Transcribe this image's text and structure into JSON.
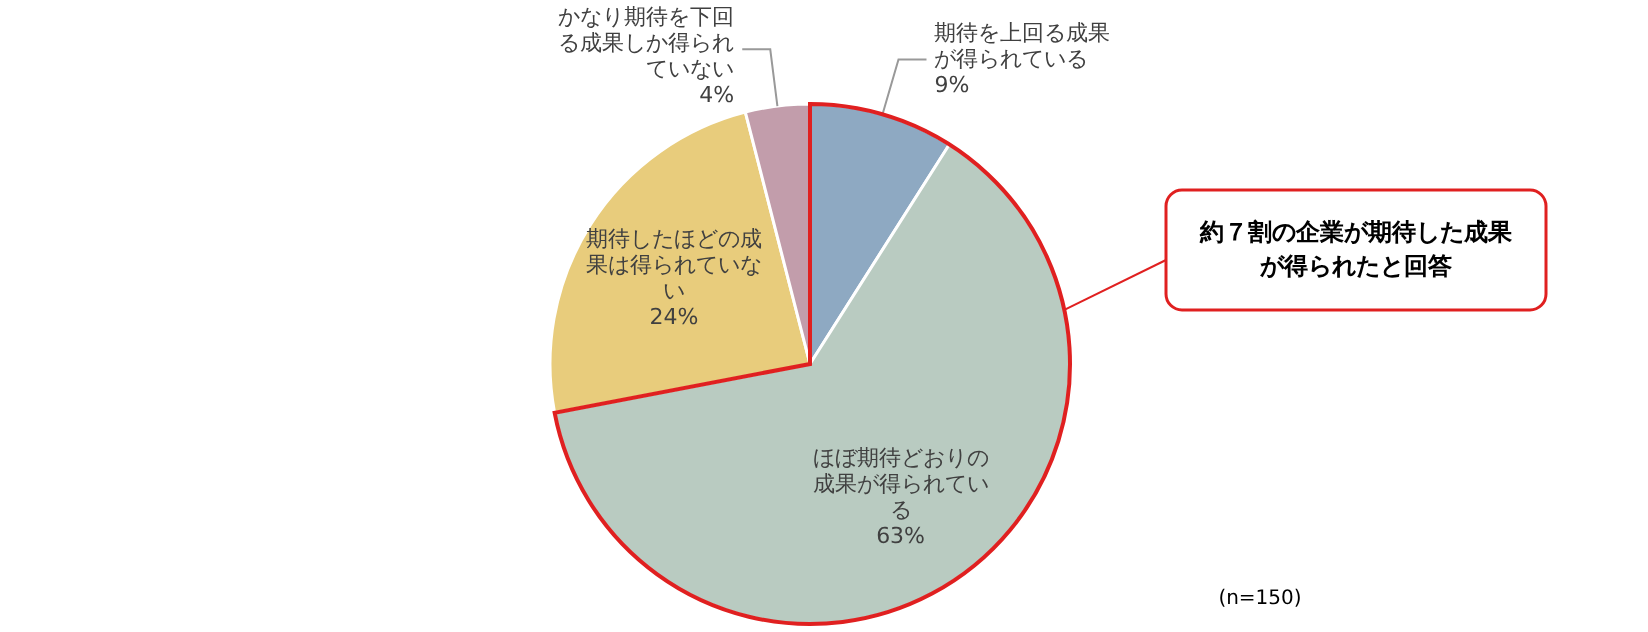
{
  "chart_data": {
    "type": "pie",
    "categories": [
      "期待を上回る成果が得られている",
      "ほぼ期待どおりの成果が得られている",
      "期待したほどの成果は得られていない",
      "かなり期待を下回る成果しか得られていない"
    ],
    "values": [
      9,
      63,
      24,
      4
    ],
    "value_labels": [
      "9%",
      "63%",
      "24%",
      "4%"
    ],
    "colors": [
      "#8ea9c2",
      "#b9cbc1",
      "#e8cc7c",
      "#c29dab"
    ],
    "annotations": [
      "約７割の企業が期待した成果が得られたと回答",
      "(n=150)"
    ]
  }
}
